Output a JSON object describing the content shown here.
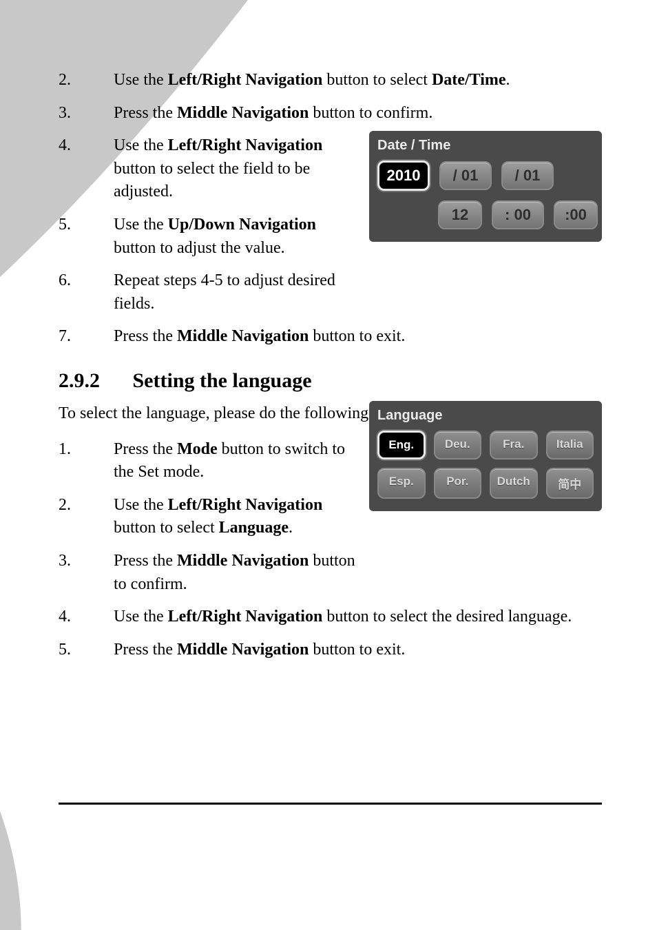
{
  "decor": {
    "arc_color": "#c8c8c8",
    "bg_color": "#ffffff"
  },
  "section1": {
    "steps": [
      {
        "n": "2.",
        "pre": "Use the ",
        "b1": "Left/Right Navigation",
        "mid": " button to select ",
        "b2": "Date/Time",
        "post": ".",
        "narrow": false
      },
      {
        "n": "3.",
        "pre": "Press the ",
        "b1": "Middle Navigation",
        "mid": " button to confirm.",
        "b2": "",
        "post": "",
        "narrow": false
      },
      {
        "n": "4.",
        "pre": "Use the ",
        "b1": "Left/Right Navigation",
        "mid": " button to select the field to be adjusted.",
        "b2": "",
        "post": "",
        "narrow": true
      },
      {
        "n": "5.",
        "pre": "Use the ",
        "b1": "Up/Down Navigation",
        "mid": " button to adjust the value.",
        "b2": "",
        "post": "",
        "narrow": true
      },
      {
        "n": "6.",
        "pre": "Repeat steps 4-5 to adjust desired fields.",
        "b1": "",
        "mid": "",
        "b2": "",
        "post": "",
        "narrow": true
      },
      {
        "n": "7.",
        "pre": "Press the ",
        "b1": "Middle Navigation",
        "mid": " button to exit.",
        "b2": "",
        "post": "",
        "narrow": false
      }
    ]
  },
  "heading": {
    "num": "2.9.2",
    "title": "Setting the language"
  },
  "intro": "To select the language, please do the following:",
  "section2": {
    "steps": [
      {
        "n": "1.",
        "pre": "Press the ",
        "b1": "Mode",
        "mid": " button to switch to the Set mode.",
        "b2": "",
        "post": "",
        "narrow": true
      },
      {
        "n": "2.",
        "pre": "Use the ",
        "b1": "Left/Right Navigation",
        "mid": " button to select ",
        "b2": "Language",
        "post": ".",
        "narrow": true
      },
      {
        "n": "3.",
        "pre": "Press the ",
        "b1": "Middle Navigation",
        "mid": " button to confirm.",
        "b2": "",
        "post": "",
        "narrow": true
      },
      {
        "n": "4.",
        "pre": "Use the ",
        "b1": "Left/Right Navigation",
        "mid": " button to select the desired language.",
        "b2": "",
        "post": "",
        "narrow": false
      },
      {
        "n": "5.",
        "pre": "Press the ",
        "b1": "Middle Navigation",
        "mid": " button to exit.",
        "b2": "",
        "post": "",
        "narrow": false
      }
    ]
  },
  "date_widget": {
    "title": "Date / Time",
    "row1": [
      {
        "text": "2010",
        "selected": true
      },
      {
        "text": "/ 01",
        "selected": false
      },
      {
        "text": "/ 01",
        "selected": false
      }
    ],
    "row2": [
      {
        "text": "12",
        "selected": false
      },
      {
        "text": ": 00",
        "selected": false
      },
      {
        "text": ":00",
        "selected": false
      }
    ]
  },
  "lang_widget": {
    "title": "Language",
    "items": [
      {
        "text": "Eng.",
        "selected": true
      },
      {
        "text": "Deu.",
        "selected": false
      },
      {
        "text": "Fra.",
        "selected": false
      },
      {
        "text": "Italia",
        "selected": false
      },
      {
        "text": "Esp.",
        "selected": false
      },
      {
        "text": "Por.",
        "selected": false
      },
      {
        "text": "Dutch",
        "selected": false
      },
      {
        "text": "简中",
        "selected": false
      }
    ]
  }
}
